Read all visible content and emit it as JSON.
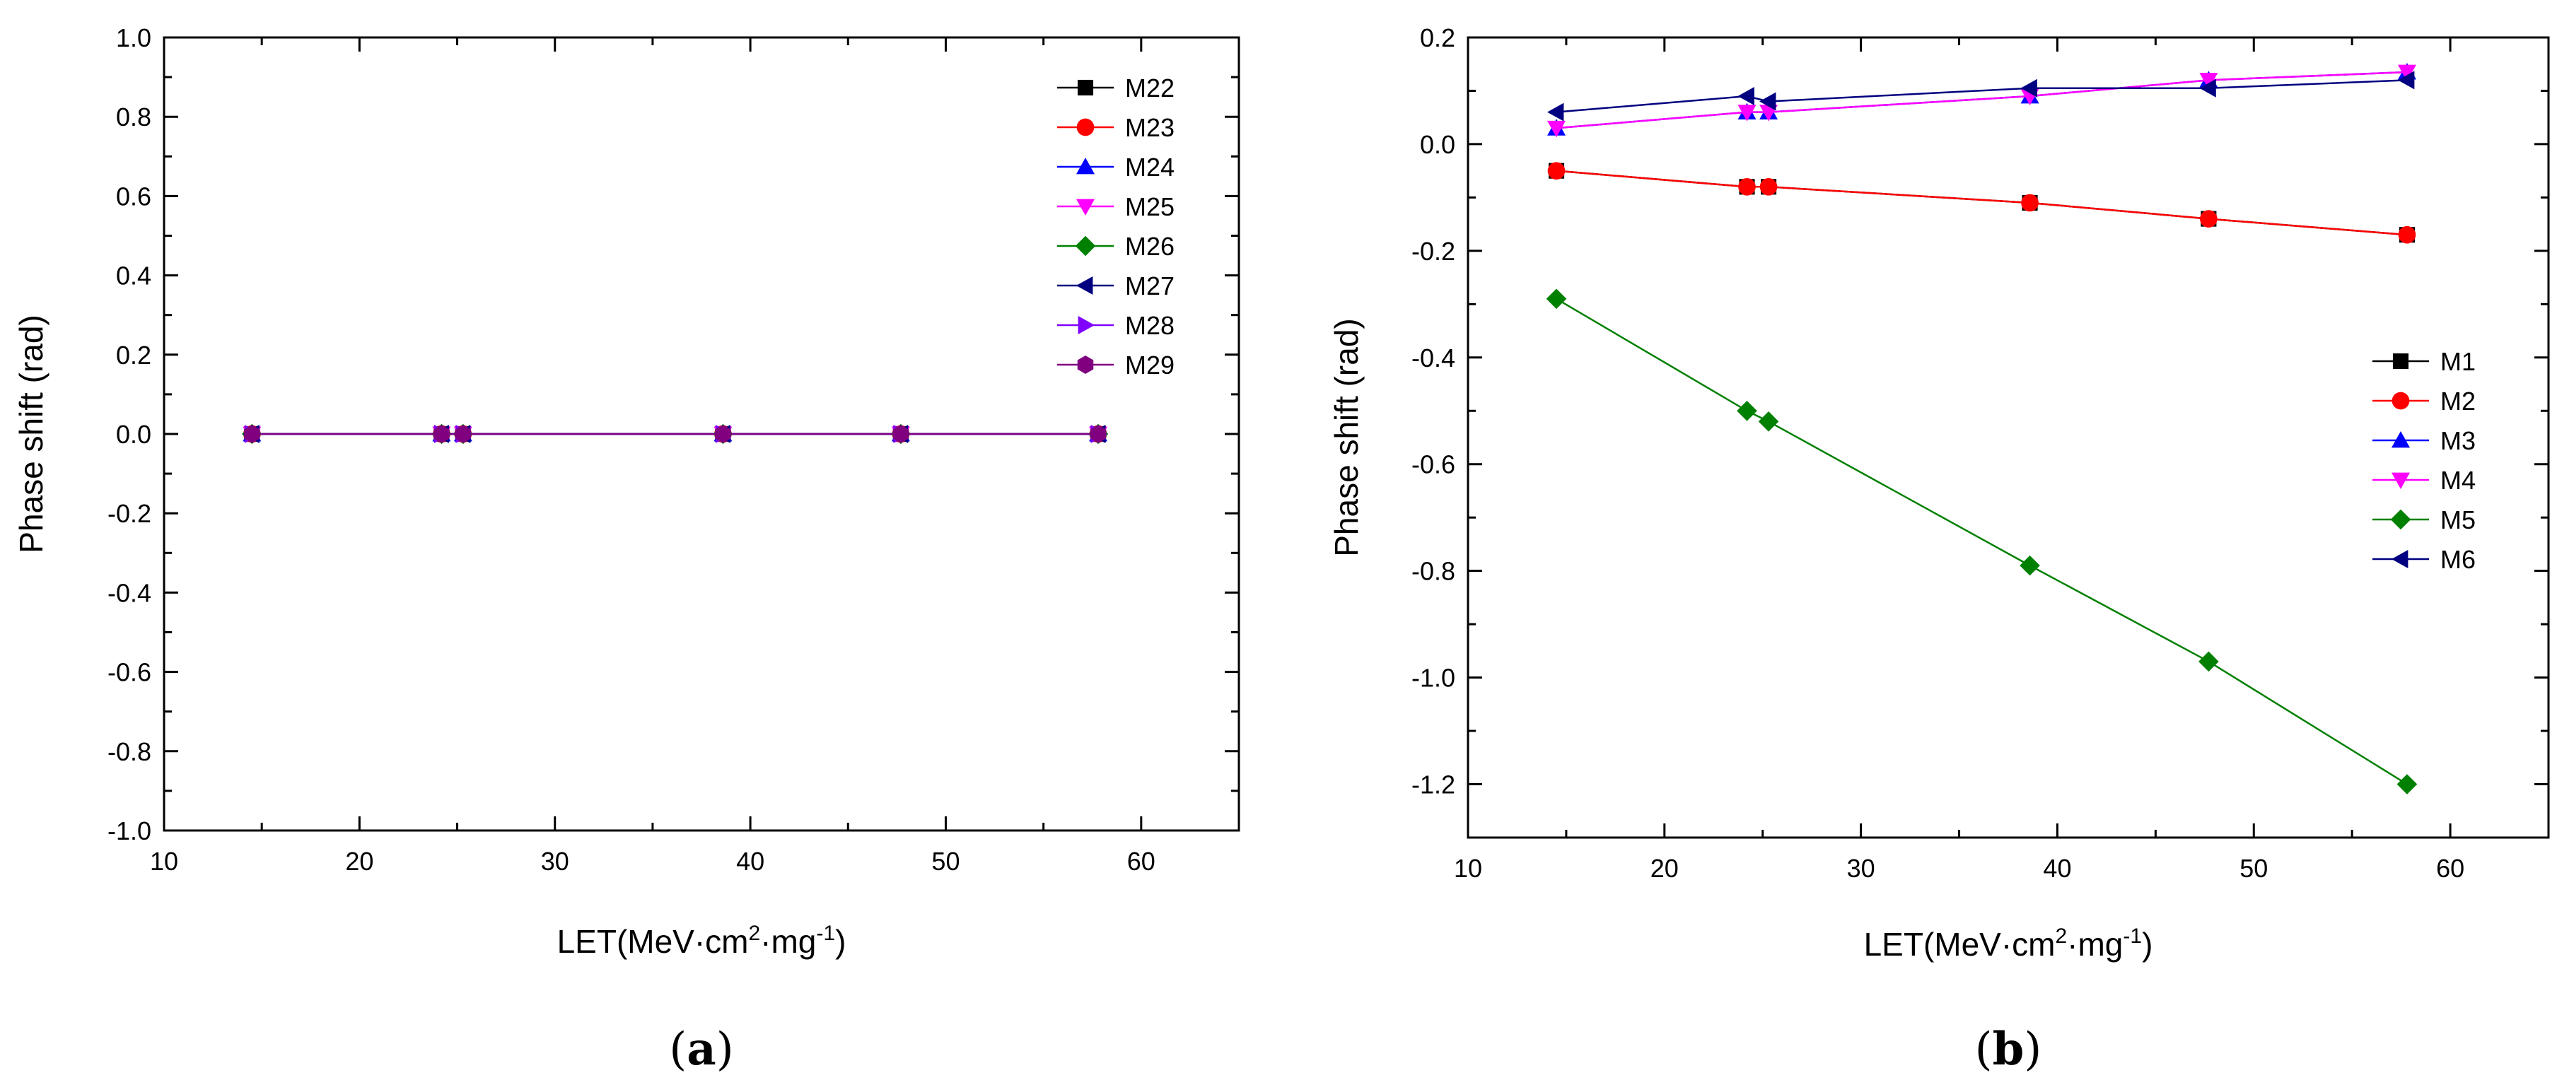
{
  "chart_data": [
    {
      "type": "line",
      "panel": "a",
      "panel_label": {
        "open": "(",
        "letter": "a",
        "close": ")"
      },
      "xlabel": {
        "prefix": "LET(MeV·cm",
        "sup1": "2",
        "middle": "·mg",
        "sup2": "-1",
        "suffix": ")"
      },
      "ylabel": "Phase shift (rad)",
      "xlim": [
        10,
        65
      ],
      "ylim": [
        -1.0,
        1.0
      ],
      "xticks": [
        10,
        20,
        30,
        40,
        50,
        60
      ],
      "xtick_labels": [
        "10",
        "20",
        "30",
        "40",
        "50",
        "60"
      ],
      "yticks": [
        -1.0,
        -0.8,
        -0.6,
        -0.4,
        -0.2,
        0.0,
        0.2,
        0.4,
        0.6,
        0.8,
        1.0
      ],
      "ytick_labels": [
        "-1.0",
        "-0.8",
        "-0.6",
        "-0.4",
        "-0.2",
        "0.0",
        "0.2",
        "0.4",
        "0.6",
        "0.8",
        "1.0"
      ],
      "x": [
        14.5,
        24.2,
        25.3,
        38.6,
        47.7,
        57.8
      ],
      "legend_position": "top-right",
      "series": [
        {
          "name": "M22",
          "color": "#000000",
          "marker": "square",
          "values": [
            0,
            0,
            0,
            0,
            0,
            0
          ]
        },
        {
          "name": "M23",
          "color": "#ff0000",
          "marker": "circle",
          "values": [
            0,
            0,
            0,
            0,
            0,
            0
          ]
        },
        {
          "name": "M24",
          "color": "#0000ff",
          "marker": "triangle-up",
          "values": [
            0,
            0,
            0,
            0,
            0,
            0
          ]
        },
        {
          "name": "M25",
          "color": "#ff00ff",
          "marker": "triangle-down",
          "values": [
            0,
            0,
            0,
            0,
            0,
            0
          ]
        },
        {
          "name": "M26",
          "color": "#008000",
          "marker": "diamond",
          "values": [
            0,
            0,
            0,
            0,
            0,
            0
          ]
        },
        {
          "name": "M27",
          "color": "#000080",
          "marker": "triangle-left",
          "values": [
            0,
            0,
            0,
            0,
            0,
            0
          ]
        },
        {
          "name": "M28",
          "color": "#8000ff",
          "marker": "triangle-right",
          "values": [
            0,
            0,
            0,
            0,
            0,
            0
          ]
        },
        {
          "name": "M29",
          "color": "#800080",
          "marker": "hexagon",
          "values": [
            0,
            0,
            0,
            0,
            0,
            0
          ]
        }
      ]
    },
    {
      "type": "line",
      "panel": "b",
      "panel_label": {
        "open": "(",
        "letter": "b",
        "close": ")"
      },
      "xlabel": {
        "prefix": "LET(MeV·cm",
        "sup1": "2",
        "middle": "·mg",
        "sup2": "-1",
        "suffix": ")"
      },
      "ylabel": "Phase shift (rad)",
      "xlim": [
        10,
        65
      ],
      "ylim": [
        -1.3,
        0.2
      ],
      "xticks": [
        10,
        20,
        30,
        40,
        50,
        60
      ],
      "xtick_labels": [
        "10",
        "20",
        "30",
        "40",
        "50",
        "60"
      ],
      "yticks": [
        -1.2,
        -1.0,
        -0.8,
        -0.6,
        -0.4,
        -0.2,
        0.0,
        0.2
      ],
      "ytick_labels": [
        "-1.2",
        "-1.0",
        "-0.8",
        "-0.6",
        "-0.4",
        "-0.2",
        "0.0",
        "0.2"
      ],
      "x": [
        14.5,
        24.2,
        25.3,
        38.6,
        47.7,
        57.8
      ],
      "legend_position": "right",
      "series": [
        {
          "name": "M1",
          "color": "#000000",
          "marker": "square",
          "values": [
            -0.05,
            -0.08,
            -0.08,
            -0.11,
            -0.14,
            -0.17
          ]
        },
        {
          "name": "M2",
          "color": "#ff0000",
          "marker": "circle",
          "values": [
            -0.05,
            -0.08,
            -0.08,
            -0.11,
            -0.14,
            -0.17
          ]
        },
        {
          "name": "M3",
          "color": "#0000ff",
          "marker": "triangle-up",
          "values": [
            0.03,
            0.06,
            0.06,
            0.09,
            0.12,
            0.135
          ]
        },
        {
          "name": "M4",
          "color": "#ff00ff",
          "marker": "triangle-down",
          "values": [
            0.03,
            0.06,
            0.06,
            0.09,
            0.12,
            0.135
          ]
        },
        {
          "name": "M5",
          "color": "#008000",
          "marker": "diamond",
          "values": [
            -0.29,
            -0.5,
            -0.52,
            -0.79,
            -0.97,
            -1.2
          ]
        },
        {
          "name": "M6",
          "color": "#000080",
          "marker": "triangle-left",
          "values": [
            0.06,
            0.09,
            0.08,
            0.105,
            0.105,
            0.12
          ]
        }
      ]
    }
  ]
}
